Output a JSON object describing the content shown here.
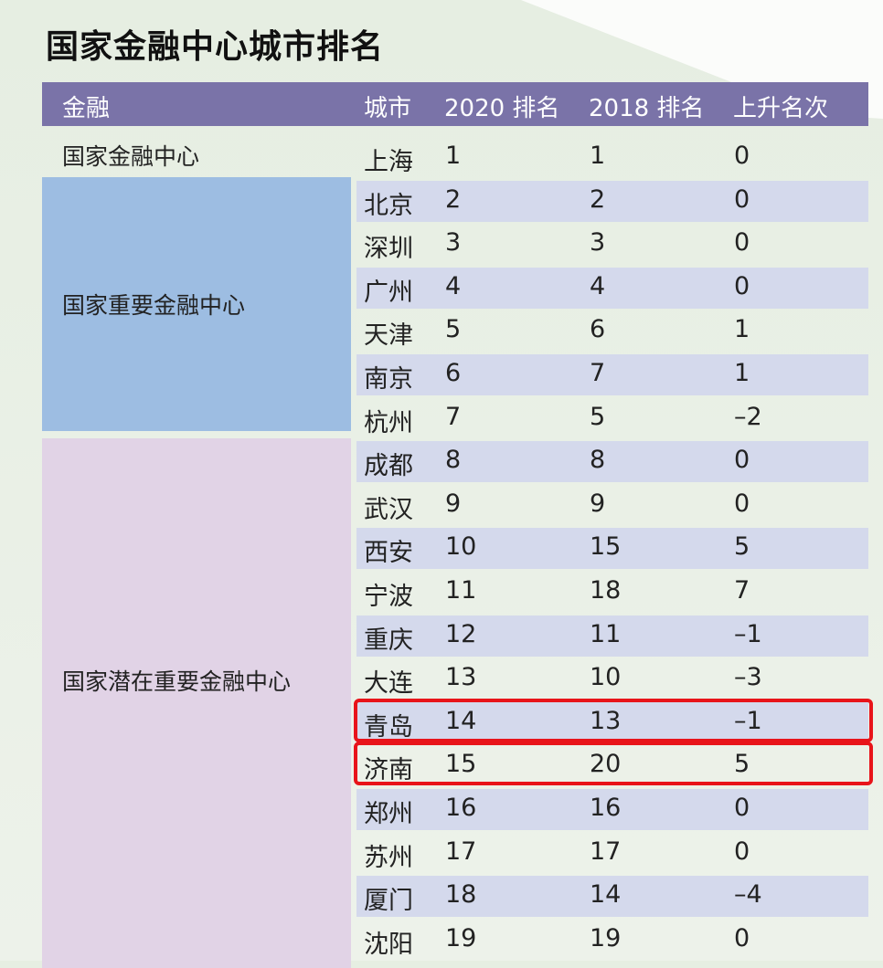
{
  "title": "国家金融中心城市排名",
  "colors": {
    "header": "#7a73a8",
    "tier2": "#9dbde2",
    "tier3": "#e1d3e6",
    "stripe": "#d4d9ec",
    "highlight": "#e8141a"
  },
  "headers": [
    "金融",
    "城市",
    "2020 排名",
    "2018 排名",
    "上升名次"
  ],
  "tiers": [
    {
      "label": "国家金融中心"
    },
    {
      "label": "国家重要金融中心"
    },
    {
      "label": "国家潜在重要金融中心"
    }
  ],
  "rows": [
    {
      "city": "上海",
      "r2020": "1",
      "r2018": "1",
      "change": "0"
    },
    {
      "city": "北京",
      "r2020": "2",
      "r2018": "2",
      "change": "0"
    },
    {
      "city": "深圳",
      "r2020": "3",
      "r2018": "3",
      "change": "0"
    },
    {
      "city": "广州",
      "r2020": "4",
      "r2018": "4",
      "change": "0"
    },
    {
      "city": "天津",
      "r2020": "5",
      "r2018": "6",
      "change": "1"
    },
    {
      "city": "南京",
      "r2020": "6",
      "r2018": "7",
      "change": "1"
    },
    {
      "city": "杭州",
      "r2020": "7",
      "r2018": "5",
      "change": "–2"
    },
    {
      "city": "成都",
      "r2020": "8",
      "r2018": "8",
      "change": "0"
    },
    {
      "city": "武汉",
      "r2020": "9",
      "r2018": "9",
      "change": "0"
    },
    {
      "city": "西安",
      "r2020": "10",
      "r2018": "15",
      "change": "5"
    },
    {
      "city": "宁波",
      "r2020": "11",
      "r2018": "18",
      "change": "7"
    },
    {
      "city": "重庆",
      "r2020": "12",
      "r2018": "11",
      "change": "–1"
    },
    {
      "city": "大连",
      "r2020": "13",
      "r2018": "10",
      "change": "–3"
    },
    {
      "city": "青岛",
      "r2020": "14",
      "r2018": "13",
      "change": "–1",
      "highlighted": true
    },
    {
      "city": "济南",
      "r2020": "15",
      "r2018": "20",
      "change": "5",
      "highlighted": true
    },
    {
      "city": "郑州",
      "r2020": "16",
      "r2018": "16",
      "change": "0"
    },
    {
      "city": "苏州",
      "r2020": "17",
      "r2018": "17",
      "change": "0"
    },
    {
      "city": "厦门",
      "r2020": "18",
      "r2018": "14",
      "change": "–4"
    },
    {
      "city": "沈阳",
      "r2020": "19",
      "r2018": "19",
      "change": "0"
    }
  ]
}
